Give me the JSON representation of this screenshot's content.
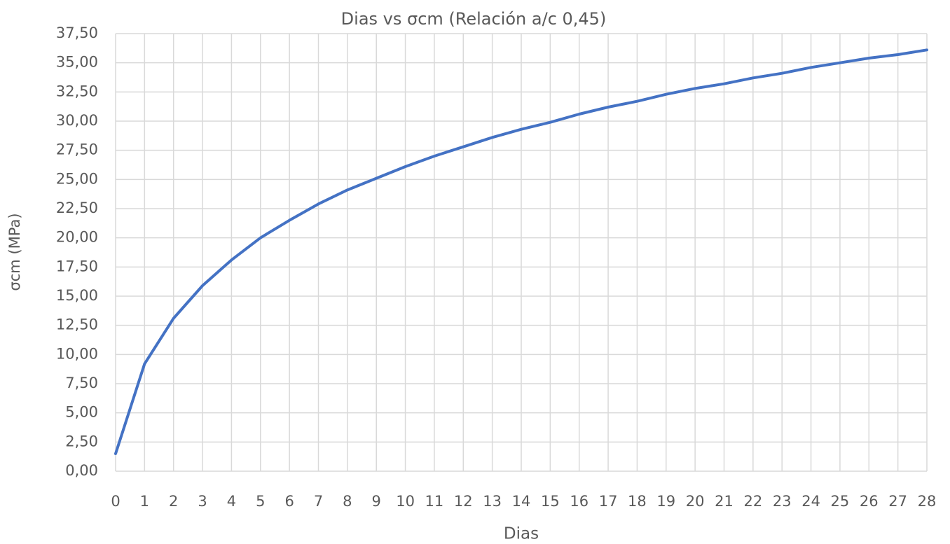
{
  "chart_data": {
    "type": "line",
    "title": "Dias vs σcm (Relación a/c 0,45)",
    "xlabel": "Dias",
    "ylabel": "σcm (MPa)",
    "x": [
      0,
      1,
      2,
      3,
      4,
      5,
      6,
      7,
      8,
      9,
      10,
      11,
      12,
      13,
      14,
      15,
      16,
      17,
      18,
      19,
      20,
      21,
      22,
      23,
      24,
      25,
      26,
      27,
      28
    ],
    "values": [
      1.5,
      9.2,
      13.1,
      15.9,
      18.1,
      20.0,
      21.5,
      22.9,
      24.1,
      25.1,
      26.1,
      27.0,
      27.8,
      28.6,
      29.3,
      29.9,
      30.6,
      31.2,
      31.7,
      32.3,
      32.8,
      33.2,
      33.7,
      34.1,
      34.6,
      35.0,
      35.4,
      35.7,
      36.1
    ],
    "color": "#4472c4",
    "xlim": [
      0,
      28
    ],
    "xticks": [
      0,
      1,
      2,
      3,
      4,
      5,
      6,
      7,
      8,
      9,
      10,
      11,
      12,
      13,
      14,
      15,
      16,
      17,
      18,
      19,
      20,
      21,
      22,
      23,
      24,
      25,
      26,
      27,
      28
    ],
    "ylim": [
      0,
      37.5
    ],
    "yticks": [
      {
        "value": 0,
        "label": "0,00"
      },
      {
        "value": 2.5,
        "label": "2,50"
      },
      {
        "value": 5,
        "label": "5,00"
      },
      {
        "value": 7.5,
        "label": "7,50"
      },
      {
        "value": 10,
        "label": "10,00"
      },
      {
        "value": 12.5,
        "label": "12,50"
      },
      {
        "value": 15,
        "label": "15,00"
      },
      {
        "value": 17.5,
        "label": "17,50"
      },
      {
        "value": 20,
        "label": "20,00"
      },
      {
        "value": 22.5,
        "label": "22,50"
      },
      {
        "value": 25,
        "label": "25,00"
      },
      {
        "value": 27.5,
        "label": "27,50"
      },
      {
        "value": 30,
        "label": "30,00"
      },
      {
        "value": 32.5,
        "label": "32,50"
      },
      {
        "value": 35,
        "label": "35,00"
      },
      {
        "value": 37.5,
        "label": "37,50"
      }
    ],
    "grid": true
  }
}
